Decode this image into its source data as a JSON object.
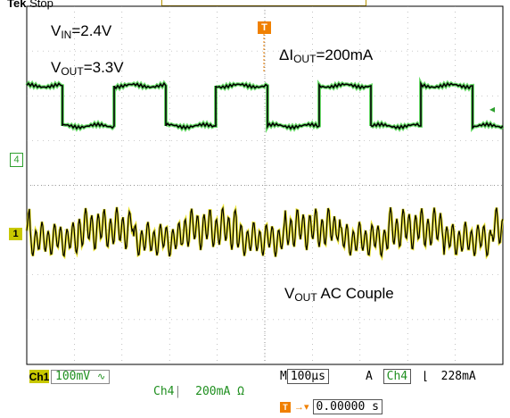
{
  "header": {
    "brand": "Tek",
    "state": "Stop"
  },
  "annotations": {
    "vin": {
      "main": "V",
      "sub": "IN",
      "rest": "=2.4V"
    },
    "vout": {
      "main": "V",
      "sub": "OUT",
      "rest": "=3.3V"
    },
    "delta_iout": {
      "main": "ΔI",
      "sub": "OUT",
      "rest": "=200mA"
    },
    "vout_ac": {
      "main": "V",
      "sub": "OUT",
      "rest": " AC Couple"
    }
  },
  "markers": {
    "ch4": "4",
    "ch1": "1",
    "trigger": "T"
  },
  "status": {
    "ch1_label": "Ch1",
    "ch1_scale": "100mV",
    "ch1_coupling_icon": "ac-coupling-icon",
    "ch4_label": "Ch4",
    "ch4_scale": "200mA",
    "ch4_unit_icon": "ohm-icon",
    "time_prefix": "M",
    "timebase": "100µs",
    "acq_mode": "A",
    "trigger_source": "Ch4",
    "trigger_slope": "\t",
    "trigger_level": "228mA",
    "trigger_position": "0.00000 s"
  },
  "colors": {
    "ch4_trace": "#000000",
    "ch4_highlight": "#2fd02f",
    "ch1_trace": "#000000",
    "ch1_highlight": "#e8e000",
    "trigger_marker": "#f08000",
    "grid": "#000000"
  }
}
